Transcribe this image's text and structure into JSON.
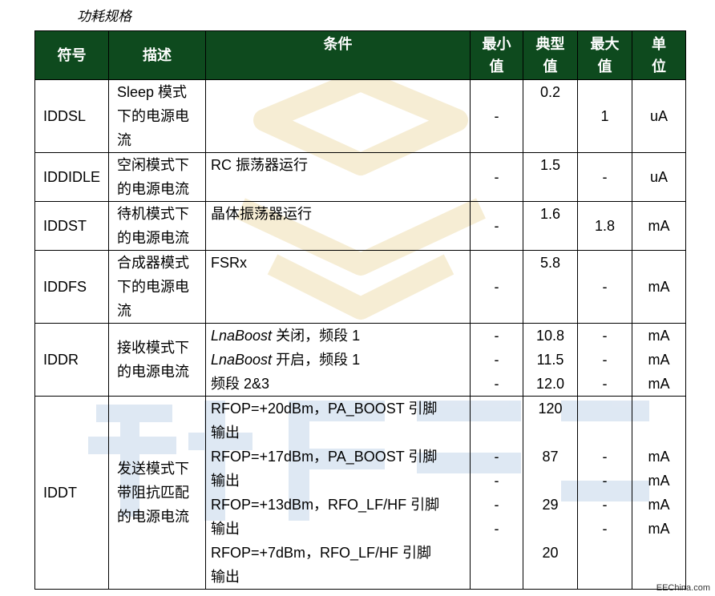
{
  "caption": "功耗规格",
  "headers": {
    "symbol": "符号",
    "description": "描述",
    "conditions": "条件",
    "min": [
      "最小",
      "值"
    ],
    "typ": [
      "典型",
      "值"
    ],
    "max": [
      "最大",
      "值"
    ],
    "unit": [
      "单",
      "位"
    ]
  },
  "rows": [
    {
      "symbol": "IDDSL",
      "description": [
        "Sleep 模式",
        "下的电源电",
        "流"
      ],
      "conditions": [],
      "min": "-",
      "typ": "0.2",
      "max": "1",
      "unit": "uA"
    },
    {
      "symbol": "IDDIDLE",
      "description": [
        "空闲模式下",
        "的电源电流"
      ],
      "conditions": [
        "RC 振荡器运行"
      ],
      "min": "-",
      "typ": "1.5",
      "max": "-",
      "unit": "uA"
    },
    {
      "symbol": "IDDST",
      "description": [
        "待机模式下",
        "的电源电流"
      ],
      "conditions": [
        "晶体振荡器运行"
      ],
      "min": "-",
      "typ": "1.6",
      "max": "1.8",
      "unit": "mA"
    },
    {
      "symbol": "IDDFS",
      "description": [
        "合成器模式",
        "下的电源电",
        "流"
      ],
      "conditions": [
        "FSRx"
      ],
      "min": "-",
      "typ": "5.8",
      "max": "-",
      "unit": "mA"
    },
    {
      "symbol": "IDDR",
      "description": [
        "接收模式下",
        "的电源电流"
      ],
      "conditions": [
        {
          "italic": "LnaBoost",
          "rest": " 关闭，频段 1"
        },
        {
          "italic": "LnaBoost",
          "rest": " 开启，频段 1"
        },
        {
          "italic": "",
          "rest": "频段 2&3"
        }
      ],
      "min": [
        "-",
        "-",
        "-"
      ],
      "typ": [
        "10.8",
        "11.5",
        "12.0"
      ],
      "max": [
        "-",
        "-",
        "-"
      ],
      "unit": [
        "mA",
        "mA",
        "mA"
      ]
    },
    {
      "symbol": "IDDT",
      "description": [
        "发送模式下",
        "带阻抗匹配",
        "的电源电流"
      ],
      "conditions": [
        [
          "RFOP=+20dBm，PA_BOOST 引脚",
          "输出"
        ],
        [
          "RFOP=+17dBm，PA_BOOST 引脚",
          "输出"
        ],
        [
          "RFOP=+13dBm，RFO_LF/HF 引脚",
          "输出"
        ],
        [
          "RFOP=+7dBm，RFO_LF/HF 引脚",
          "输出"
        ]
      ],
      "min": [
        "-",
        "-",
        "-",
        "-"
      ],
      "typ": [
        "120",
        "87",
        "29",
        "20"
      ],
      "max": [
        "-",
        "-",
        "-",
        "-"
      ],
      "unit": [
        "mA",
        "mA",
        "mA",
        "mA"
      ]
    }
  ],
  "footer": "EEChina.com",
  "colors": {
    "header_bg": "#0e4a1e",
    "watermark": "#dbe6f2",
    "watermark_yellow": "#f6edd4"
  }
}
